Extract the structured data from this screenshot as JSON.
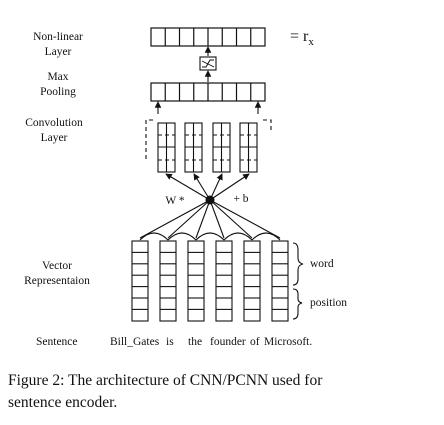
{
  "labels": {
    "nonlinear_line1": "Non-linear",
    "nonlinear_line2": "Layer",
    "maxpool_line1": "Max",
    "maxpool_line2": "Pooling",
    "conv_line1": "Convolution",
    "conv_line2": "Layer",
    "vector_line1": "Vector",
    "vector_line2": "Representaion",
    "sentence": "Sentence"
  },
  "output": {
    "eq": "= r",
    "sub": "x"
  },
  "operators": {
    "weight": "W *",
    "bias": "+ b"
  },
  "braces": {
    "word": "word",
    "position": "position"
  },
  "sentence_tokens": [
    "Bill_Gates",
    "is",
    "the",
    "founder",
    "of",
    "Microsoft."
  ],
  "caption": {
    "line1": "Figure 2: The architecture of CNN/PCNN used for",
    "line2": "sentence encoder."
  }
}
